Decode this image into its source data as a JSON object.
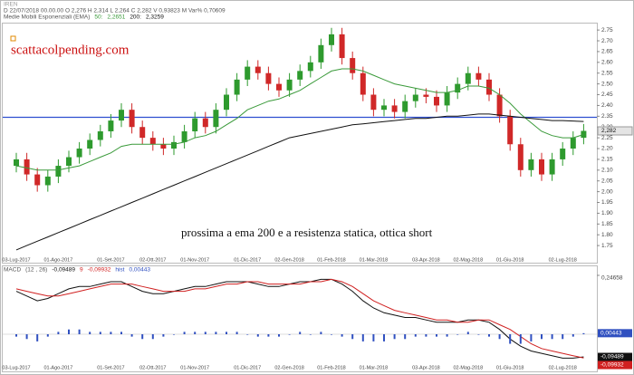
{
  "chart_data": [
    {
      "type": "candlestick",
      "symbol": "IREN",
      "header": "D 22/07/2018 00.00.00  O 2,276  H 2,314  L 2,264  C 2,282  V 0,93823 M  Var% 0,70609",
      "indicator": "Medie Mobili Esponenziali (EMA)",
      "annotations": [
        "scattacolpending.com",
        "prossima a ema 200 e a resistenza statica, ottica short"
      ],
      "categories": [
        "03-Lug-2017",
        null,
        null,
        null,
        "01-Ago-2017",
        null,
        null,
        null,
        null,
        "01-Set-2017",
        null,
        null,
        null,
        "02-Ott-2017",
        null,
        null,
        null,
        "01-Nov-2017",
        null,
        null,
        null,
        null,
        "01-Dic-2017",
        null,
        null,
        null,
        "02-Gen-2018",
        null,
        null,
        null,
        "01-Feb-2018",
        null,
        null,
        null,
        "01-Mar-2018",
        null,
        null,
        null,
        null,
        "03-Apr-2018",
        null,
        null,
        null,
        "02-Mag-2018",
        null,
        null,
        null,
        "01-Giu-2018",
        null,
        null,
        null,
        null,
        "02-Lug-2018",
        null,
        null
      ],
      "open": [
        2.12,
        2.15,
        2.08,
        2.03,
        2.07,
        2.12,
        2.16,
        2.2,
        2.24,
        2.28,
        2.33,
        2.38,
        2.3,
        2.25,
        2.22,
        2.2,
        2.23,
        2.28,
        2.34,
        2.3,
        2.38,
        2.45,
        2.52,
        2.58,
        2.55,
        2.5,
        2.47,
        2.52,
        2.56,
        2.6,
        2.68,
        2.73,
        2.62,
        2.55,
        2.45,
        2.38,
        2.4,
        2.37,
        2.42,
        2.45,
        2.44,
        2.4,
        2.46,
        2.5,
        2.55,
        2.52,
        2.45,
        2.35,
        2.22,
        2.1,
        2.15,
        2.08,
        2.15,
        2.2,
        2.25
      ],
      "high": [
        2.18,
        2.18,
        2.11,
        2.1,
        2.15,
        2.19,
        2.23,
        2.27,
        2.31,
        2.36,
        2.41,
        2.41,
        2.33,
        2.28,
        2.25,
        2.26,
        2.31,
        2.37,
        2.37,
        2.41,
        2.48,
        2.55,
        2.61,
        2.61,
        2.58,
        2.53,
        2.55,
        2.59,
        2.63,
        2.71,
        2.76,
        2.76,
        2.65,
        2.58,
        2.48,
        2.43,
        2.43,
        2.45,
        2.48,
        2.48,
        2.47,
        2.49,
        2.53,
        2.58,
        2.58,
        2.55,
        2.48,
        2.38,
        2.25,
        2.18,
        2.18,
        2.18,
        2.23,
        2.28,
        2.314
      ],
      "low": [
        2.09,
        2.05,
        2.0,
        2.0,
        2.04,
        2.09,
        2.13,
        2.17,
        2.21,
        2.25,
        2.3,
        2.27,
        2.22,
        2.19,
        2.17,
        2.17,
        2.2,
        2.25,
        2.27,
        2.27,
        2.35,
        2.42,
        2.49,
        2.52,
        2.47,
        2.44,
        2.44,
        2.49,
        2.53,
        2.57,
        2.65,
        2.59,
        2.52,
        2.42,
        2.35,
        2.35,
        2.34,
        2.34,
        2.39,
        2.41,
        2.37,
        2.37,
        2.43,
        2.47,
        2.49,
        2.42,
        2.32,
        2.19,
        2.07,
        2.07,
        2.05,
        2.05,
        2.12,
        2.17,
        2.22
      ],
      "close": [
        2.15,
        2.08,
        2.03,
        2.07,
        2.12,
        2.16,
        2.2,
        2.24,
        2.28,
        2.33,
        2.38,
        2.3,
        2.25,
        2.22,
        2.2,
        2.23,
        2.28,
        2.34,
        2.3,
        2.38,
        2.45,
        2.52,
        2.58,
        2.55,
        2.5,
        2.47,
        2.52,
        2.56,
        2.6,
        2.68,
        2.73,
        2.62,
        2.55,
        2.45,
        2.38,
        2.4,
        2.37,
        2.42,
        2.45,
        2.44,
        2.4,
        2.46,
        2.5,
        2.55,
        2.52,
        2.45,
        2.35,
        2.22,
        2.1,
        2.15,
        2.08,
        2.15,
        2.2,
        2.25,
        2.282
      ],
      "last_label": "2,282",
      "up_color": "#2e9a2e",
      "down_color": "#d02828",
      "series": [
        {
          "name": "50:",
          "color": "#3a9a3a",
          "value_label": "2,2651",
          "values": [
            2.12,
            2.11,
            2.1,
            2.1,
            2.1,
            2.11,
            2.12,
            2.14,
            2.16,
            2.18,
            2.21,
            2.22,
            2.22,
            2.22,
            2.22,
            2.22,
            2.23,
            2.25,
            2.26,
            2.28,
            2.31,
            2.34,
            2.38,
            2.4,
            2.42,
            2.43,
            2.45,
            2.47,
            2.5,
            2.53,
            2.56,
            2.57,
            2.57,
            2.56,
            2.54,
            2.52,
            2.5,
            2.49,
            2.48,
            2.47,
            2.46,
            2.46,
            2.47,
            2.49,
            2.49,
            2.48,
            2.45,
            2.41,
            2.36,
            2.32,
            2.28,
            2.26,
            2.25,
            2.25,
            2.2651
          ]
        },
        {
          "name": "200:",
          "color": "#111111",
          "value_label": "2,3259",
          "values": [
            1.73,
            1.75,
            1.77,
            1.79,
            1.81,
            1.83,
            1.85,
            1.87,
            1.89,
            1.91,
            1.93,
            1.95,
            1.97,
            1.99,
            2.01,
            2.03,
            2.05,
            2.07,
            2.09,
            2.11,
            2.13,
            2.15,
            2.17,
            2.19,
            2.21,
            2.23,
            2.25,
            2.26,
            2.27,
            2.28,
            2.29,
            2.3,
            2.31,
            2.315,
            2.32,
            2.325,
            2.33,
            2.335,
            2.34,
            2.34,
            2.345,
            2.35,
            2.35,
            2.355,
            2.36,
            2.36,
            2.355,
            2.35,
            2.345,
            2.34,
            2.335,
            2.33,
            2.33,
            2.328,
            2.3259
          ]
        }
      ],
      "hline": {
        "value": 2.345,
        "color": "#2f4fd0"
      },
      "ylim": [
        1.7,
        2.78
      ],
      "yticks": [
        2.75,
        {
          "value": 2.7,
          "label": "2.70"
        },
        2.65,
        {
          "value": 2.6,
          "label": "2.60"
        },
        2.55,
        {
          "value": 2.5,
          "label": "2.50"
        },
        2.45,
        {
          "value": 2.4,
          "label": "2.40"
        },
        2.35,
        {
          "value": 2.3,
          "label": "2.30"
        },
        2.25,
        {
          "value": 2.2,
          "label": "2.20"
        },
        2.15,
        {
          "value": 2.1,
          "label": "2.10"
        },
        2.05,
        {
          "value": 2.0,
          "label": "2.00"
        },
        1.95,
        {
          "value": 1.9,
          "label": "1.90"
        },
        1.85,
        {
          "value": 1.8,
          "label": "1.80"
        },
        1.75
      ]
    },
    {
      "type": "line",
      "title": "MACD",
      "params": "(12 , 26)",
      "series": [
        {
          "color": "#111111",
          "value_label": "-0,09489",
          "values": [
            0.18,
            0.16,
            0.14,
            0.15,
            0.17,
            0.19,
            0.2,
            0.2,
            0.21,
            0.22,
            0.22,
            0.2,
            0.18,
            0.17,
            0.17,
            0.18,
            0.19,
            0.2,
            0.2,
            0.21,
            0.22,
            0.22,
            0.22,
            0.21,
            0.2,
            0.2,
            0.21,
            0.22,
            0.22,
            0.23,
            0.23,
            0.21,
            0.18,
            0.14,
            0.11,
            0.09,
            0.08,
            0.07,
            0.07,
            0.06,
            0.05,
            0.05,
            0.05,
            0.06,
            0.06,
            0.05,
            0.02,
            -0.02,
            -0.05,
            -0.07,
            -0.08,
            -0.09,
            -0.1,
            -0.1,
            -0.09489
          ]
        },
        {
          "name": "9",
          "color": "#d02020",
          "value_label": "-0,09932",
          "values": [
            0.19,
            0.18,
            0.17,
            0.16,
            0.16,
            0.17,
            0.18,
            0.19,
            0.2,
            0.21,
            0.21,
            0.21,
            0.2,
            0.19,
            0.18,
            0.18,
            0.18,
            0.19,
            0.19,
            0.2,
            0.21,
            0.21,
            0.22,
            0.22,
            0.21,
            0.21,
            0.21,
            0.21,
            0.22,
            0.22,
            0.23,
            0.22,
            0.2,
            0.17,
            0.14,
            0.12,
            0.1,
            0.09,
            0.08,
            0.07,
            0.06,
            0.06,
            0.05,
            0.05,
            0.06,
            0.06,
            0.04,
            0.02,
            -0.01,
            -0.04,
            -0.06,
            -0.07,
            -0.08,
            -0.09,
            -0.09932
          ]
        },
        {
          "name": "hist",
          "kind": "bar",
          "color": "#3050c0",
          "value_label": "0,00443",
          "values": [
            -0.01,
            -0.02,
            -0.03,
            -0.01,
            0.01,
            0.02,
            0.02,
            0.01,
            0.01,
            0.01,
            0.01,
            -0.01,
            -0.02,
            -0.02,
            -0.01,
            0,
            0.01,
            0.01,
            0.01,
            0.01,
            0.01,
            0.01,
            0,
            -0.01,
            -0.01,
            -0.01,
            0,
            0.01,
            0,
            0.01,
            0,
            -0.01,
            -0.02,
            -0.03,
            -0.03,
            -0.03,
            -0.02,
            -0.02,
            -0.01,
            -0.01,
            -0.01,
            -0.01,
            0,
            0.01,
            0,
            -0.01,
            -0.02,
            -0.04,
            -0.04,
            -0.03,
            -0.02,
            -0.02,
            -0.02,
            -0.01,
            0.00443
          ]
        }
      ],
      "ylim": [
        -0.11,
        0.24658
      ],
      "yticks": [
        {
          "value": 0.24658,
          "label": "0,24658"
        }
      ]
    }
  ]
}
